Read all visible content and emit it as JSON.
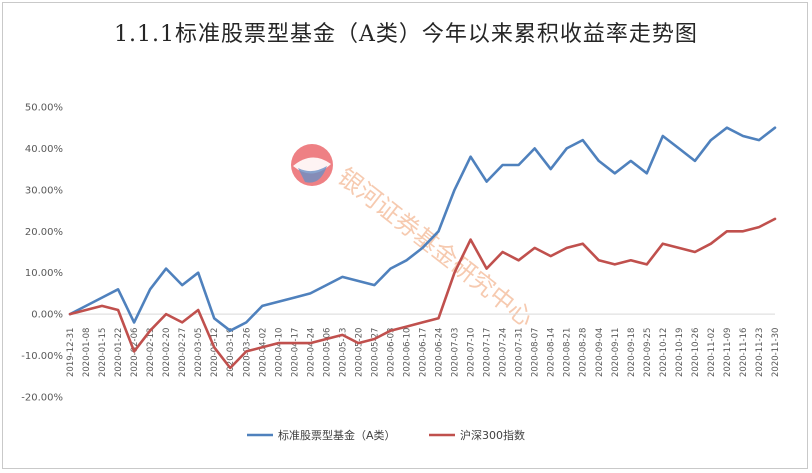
{
  "chart_data": {
    "type": "line",
    "title": "1.1.1标准股票型基金（A类）今年以来累积收益率走势图",
    "xlabel": "",
    "ylabel": "",
    "ylim": [
      -20,
      50
    ],
    "yticks": [
      50,
      40,
      30,
      20,
      10,
      0,
      -10,
      -20
    ],
    "ytick_labels": [
      "50.00%",
      "40.00%",
      "30.00%",
      "20.00%",
      "10.00%",
      "0.00%",
      "-10.00%",
      "-20.00%"
    ],
    "x": [
      "2019-12-31",
      "2020-01-08",
      "2020-01-15",
      "2020-01-22",
      "2020-02-06",
      "2020-02-13",
      "2020-02-20",
      "2020-02-27",
      "2020-03-05",
      "2020-03-12",
      "2020-03-19",
      "2020-03-26",
      "2020-04-02",
      "2020-04-10",
      "2020-04-17",
      "2020-04-24",
      "2020-05-06",
      "2020-05-13",
      "2020-05-20",
      "2020-05-27",
      "2020-06-03",
      "2020-06-10",
      "2020-06-17",
      "2020-06-24",
      "2020-07-03",
      "2020-07-10",
      "2020-07-17",
      "2020-07-24",
      "2020-07-31",
      "2020-08-07",
      "2020-08-14",
      "2020-08-21",
      "2020-08-28",
      "2020-09-04",
      "2020-09-11",
      "2020-09-18",
      "2020-09-25",
      "2020-10-12",
      "2020-10-19",
      "2020-10-26",
      "2020-11-02",
      "2020-11-09",
      "2020-11-16",
      "2020-11-23",
      "2020-11-30"
    ],
    "series": [
      {
        "name": "标准股票型基金（A类）",
        "color": "#4f81bd",
        "values": [
          0,
          2,
          4,
          6,
          -2,
          6,
          11,
          7,
          10,
          -1,
          -4,
          -2,
          2,
          3,
          4,
          5,
          7,
          9,
          8,
          7,
          11,
          13,
          16,
          20,
          30,
          38,
          32,
          36,
          36,
          40,
          35,
          40,
          42,
          37,
          34,
          37,
          34,
          43,
          40,
          37,
          42,
          45,
          43,
          42,
          45
        ]
      },
      {
        "name": "沪深300指数",
        "color": "#c0504d",
        "values": [
          0,
          1,
          2,
          1,
          -9,
          -4,
          0,
          -2,
          1,
          -8,
          -13,
          -9,
          -8,
          -7,
          -7,
          -7,
          -6,
          -5,
          -7,
          -6,
          -4,
          -3,
          -2,
          -1,
          10,
          18,
          11,
          15,
          13,
          16,
          14,
          16,
          17,
          13,
          12,
          13,
          12,
          17,
          16,
          15,
          17,
          20,
          20,
          21,
          23
        ]
      }
    ],
    "grid": false,
    "legend": "bottom",
    "watermark": "银河证券基金研究中心"
  }
}
